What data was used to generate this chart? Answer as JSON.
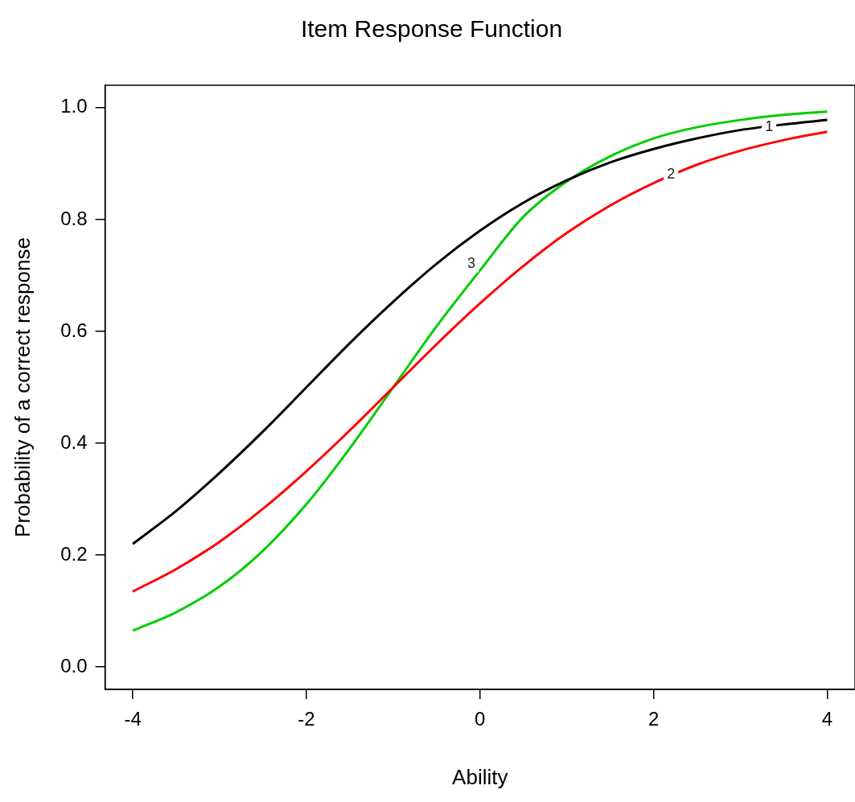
{
  "chart_data": {
    "type": "line",
    "title": "Item Response Function",
    "xlabel": "Ability",
    "ylabel": "Probability of a correct response",
    "x": [
      -4,
      -3.5,
      -3,
      -2.5,
      -2,
      -1.5,
      -1,
      -0.5,
      0,
      0.5,
      1,
      1.5,
      2,
      2.5,
      3,
      3.5,
      4
    ],
    "series": [
      {
        "color": "#000000",
        "values": [
          0.22,
          0.279,
          0.347,
          0.421,
          0.5,
          0.579,
          0.653,
          0.721,
          0.78,
          0.83,
          0.87,
          0.902,
          0.926,
          0.945,
          0.96,
          0.97,
          0.978
        ]
      },
      {
        "color": "#ff0000",
        "values": [
          0.135,
          0.175,
          0.224,
          0.283,
          0.35,
          0.423,
          0.5,
          0.577,
          0.65,
          0.717,
          0.776,
          0.825,
          0.865,
          0.898,
          0.923,
          0.942,
          0.957
        ]
      },
      {
        "color": "#00cd00",
        "values": [
          0.065,
          0.098,
          0.144,
          0.208,
          0.291,
          0.391,
          0.5,
          0.609,
          0.709,
          0.805,
          0.868,
          0.913,
          0.945,
          0.965,
          0.978,
          0.987,
          0.993
        ]
      }
    ],
    "annotations": [
      {
        "text": "1",
        "x": 3.33,
        "y": 0.965
      },
      {
        "text": "2",
        "x": 2.2,
        "y": 0.88
      },
      {
        "text": "3",
        "x": -0.1,
        "y": 0.72
      }
    ],
    "xlim": [
      -4.32,
      4.32
    ],
    "ylim": [
      -0.04,
      1.04
    ],
    "xticks": [
      -4,
      -2,
      0,
      2,
      4
    ],
    "yticks": [
      {
        "value": 0,
        "label": "0.0"
      },
      {
        "value": 0.2,
        "label": "0.2"
      },
      {
        "value": 0.4,
        "label": "0.4"
      },
      {
        "value": 0.6,
        "label": "0.6"
      },
      {
        "value": 0.8,
        "label": "0.8"
      },
      {
        "value": 1,
        "label": "1.0"
      }
    ],
    "grid": false,
    "legend": false,
    "marker": "none",
    "line_style": "solid"
  }
}
